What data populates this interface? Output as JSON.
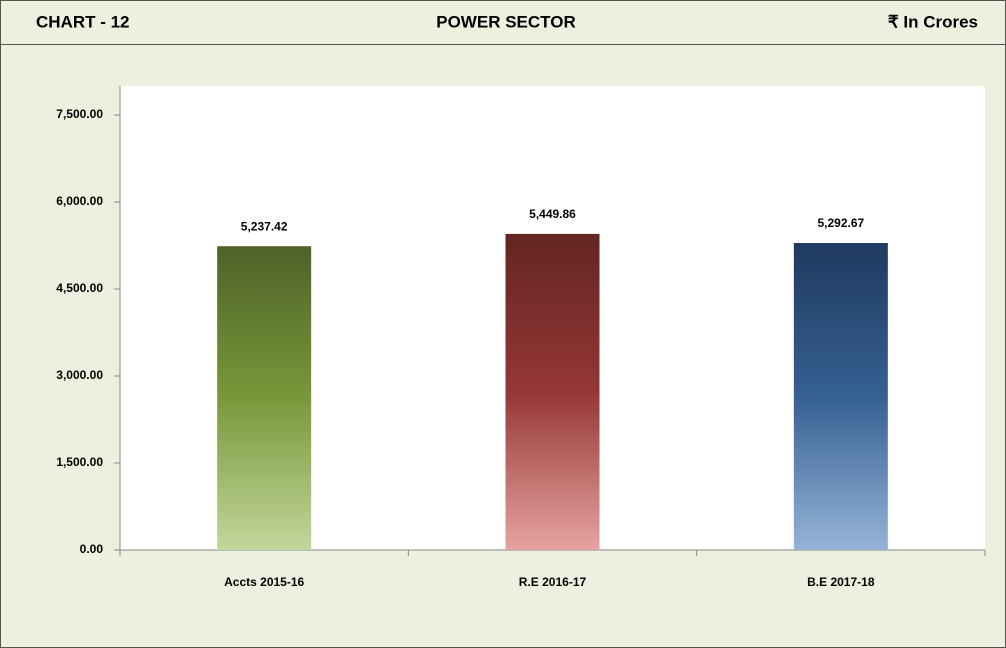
{
  "chart_data": {
    "type": "bar",
    "header": {
      "left": "CHART - 12",
      "title": "POWER SECTOR",
      "unit": "₹ In Crores"
    },
    "categories": [
      "Accts 2015-16",
      "R.E 2016-17",
      "B.E 2017-18"
    ],
    "values": [
      5237.42,
      5449.86,
      5292.67
    ],
    "value_labels": [
      "5,237.42",
      "5,449.86",
      "5,292.67"
    ],
    "colors": [
      [
        "#4f6228",
        "#77993a",
        "#c3d69b"
      ],
      [
        "#632523",
        "#953735",
        "#e6a3a0"
      ],
      [
        "#1f3a5f",
        "#366092",
        "#95b3d7"
      ]
    ],
    "ylim": [
      0,
      8000
    ],
    "yticks": [
      {
        "value": 0,
        "label": "0.00"
      },
      {
        "value": 1500,
        "label": "1,500.00"
      },
      {
        "value": 3000,
        "label": "3,000.00"
      },
      {
        "value": 4500,
        "label": "4,500.00"
      },
      {
        "value": 6000,
        "label": "6,000.00"
      },
      {
        "value": 7500,
        "label": "7,500.00"
      }
    ],
    "grid": false
  }
}
